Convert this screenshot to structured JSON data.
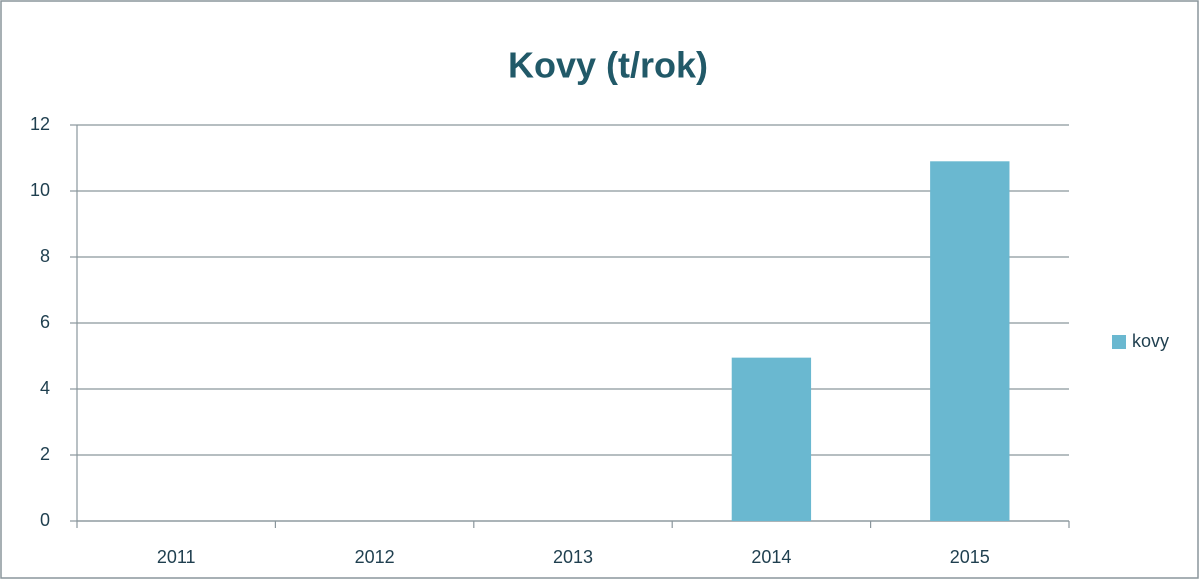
{
  "chart_data": {
    "type": "bar",
    "title": "Kovy (t/rok)",
    "categories": [
      "2011",
      "2012",
      "2013",
      "2014",
      "2015"
    ],
    "series": [
      {
        "name": "kovy",
        "color": "#6ab8d0",
        "values": [
          0,
          0,
          0,
          4.95,
          10.9
        ]
      }
    ],
    "ylim": [
      0,
      12
    ],
    "yticks": [
      0,
      2,
      4,
      6,
      8,
      10,
      12
    ],
    "grid": true,
    "legend": "right"
  }
}
